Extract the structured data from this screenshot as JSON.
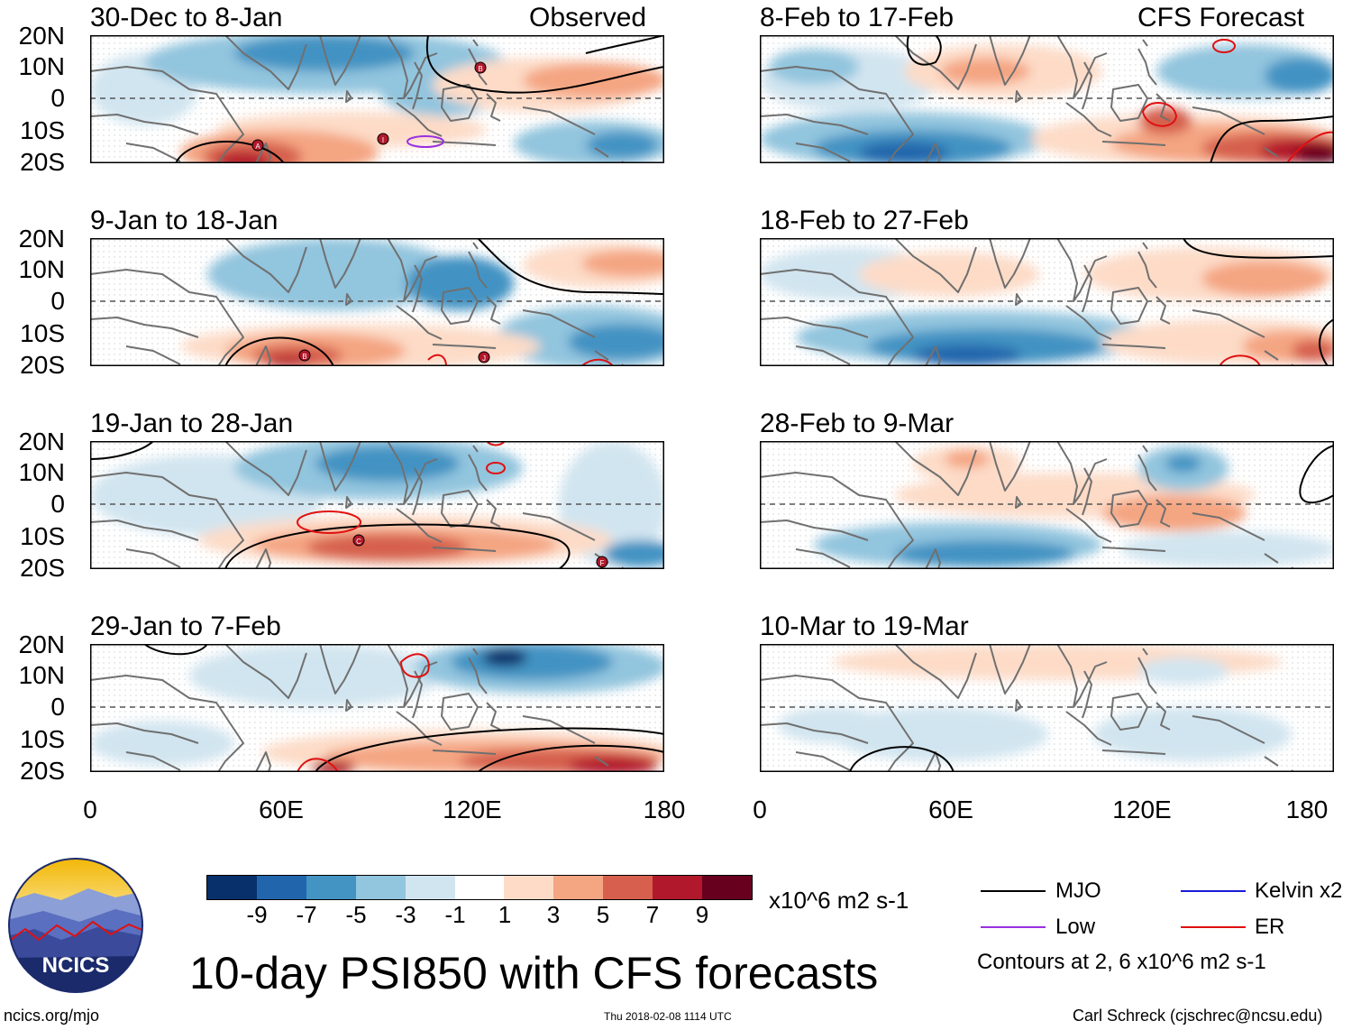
{
  "panels": {
    "p1": {
      "title": "30-Dec to 8-Jan",
      "tag": "Observed"
    },
    "p2": {
      "title": "9-Jan to 18-Jan"
    },
    "p3": {
      "title": "19-Jan to 28-Jan"
    },
    "p4": {
      "title": "29-Jan to 7-Feb"
    },
    "p5": {
      "title": "8-Feb to 17-Feb",
      "tag": "CFS Forecast"
    },
    "p6": {
      "title": "18-Feb to 27-Feb"
    },
    "p7": {
      "title": "28-Feb to 9-Mar"
    },
    "p8": {
      "title": "10-Mar to 19-Mar"
    }
  },
  "axes": {
    "lat_labels": [
      "20N",
      "10N",
      "0",
      "10S",
      "20S"
    ],
    "lon_labels": [
      "0",
      "60E",
      "120E",
      "180"
    ]
  },
  "storms": [
    "A",
    "I",
    "B",
    "B",
    "J",
    "C",
    "F"
  ],
  "colorbar": {
    "labels": [
      "-9",
      "-7",
      "-5",
      "-3",
      "-1",
      "1",
      "3",
      "5",
      "7",
      "9"
    ],
    "units": "x10^6 m2 s-1",
    "colors": [
      "#08306b",
      "#2166ac",
      "#4393c3",
      "#92c5de",
      "#d1e5f0",
      "#ffffff",
      "#fddbc7",
      "#f4a582",
      "#d6604d",
      "#b2182b",
      "#67001f"
    ]
  },
  "legend": {
    "mjo": "MJO",
    "low": "Low",
    "kelvin": "Kelvin x2",
    "er": "ER",
    "note": "Contours at 2, 6 x10^6 m2 s-1",
    "colors": {
      "mjo": "#000000",
      "low": "#9a30e0",
      "kelvin": "#1a1ad6",
      "er": "#e01010"
    }
  },
  "logo": {
    "text": "NCICS"
  },
  "title": "10-day PSI850 with CFS forecasts",
  "footer": {
    "left": "ncics.org/mjo",
    "center": "Thu 2018-02-08 1114 UTC",
    "right": "Carl Schreck (cjschrec@ncsu.edu)"
  }
}
